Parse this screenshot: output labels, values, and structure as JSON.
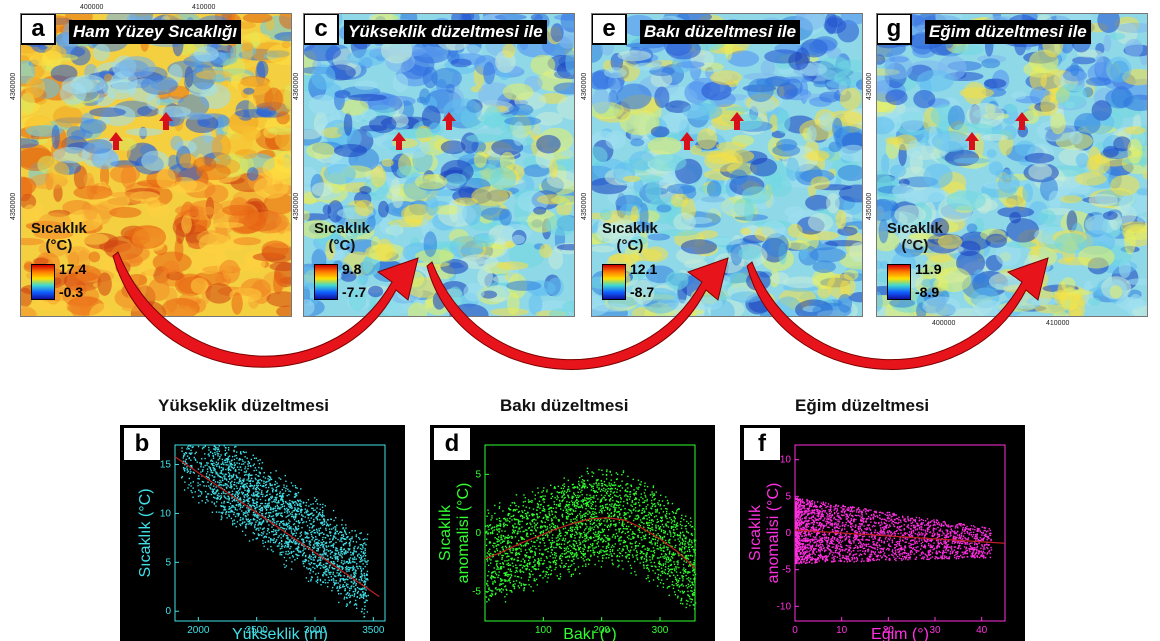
{
  "maps": [
    {
      "letter": "a",
      "title": "Ham Yüzey Sıcaklığı",
      "legend_title_line1": "Sıcaklık",
      "legend_title_line2": "(°C)",
      "max": "17.4",
      "min": "-0.3",
      "palette": "warm"
    },
    {
      "letter": "c",
      "title": "Yükseklik düzeltmesi ile",
      "legend_title_line1": "Sıcaklık",
      "legend_title_line2": "(°C)",
      "max": "9.8",
      "min": "-7.7",
      "palette": "cool"
    },
    {
      "letter": "e",
      "title": "Bakı düzeltmesi ile",
      "legend_title_line1": "Sıcaklık",
      "legend_title_line2": "(°C)",
      "max": "12.1",
      "min": "-8.7",
      "palette": "cool"
    },
    {
      "letter": "g",
      "title": "Eğim düzeltmesi ile",
      "legend_title_line1": "Sıcaklık",
      "legend_title_line2": "(°C)",
      "max": "11.9",
      "min": "-8.9",
      "palette": "cool"
    }
  ],
  "map_ticks": {
    "top_x": [
      "400000",
      "410000"
    ],
    "bottom_x": [
      "400000",
      "410000"
    ],
    "left_y": [
      "4360000",
      "4350000"
    ]
  },
  "colors": {
    "arrow": "#e8141c",
    "marker": "#d8101a",
    "cyan": "#40e0e8",
    "green": "#30ff30",
    "magenta": "#ff30e0",
    "fit": "#c02020"
  },
  "chart_data": [
    {
      "type": "scatter",
      "letter": "b",
      "title": "Yükseklik düzeltmesi",
      "xlabel": "Yükseklik (m)",
      "ylabel": "Sıcaklık (°C)",
      "xlim": [
        1800,
        3600
      ],
      "ylim": [
        -1,
        17
      ],
      "xticks": [
        2000,
        2500,
        3000,
        3500
      ],
      "yticks": [
        0,
        5,
        10,
        15
      ],
      "color": "#40e0e8",
      "fit": {
        "x": [
          1800,
          3550
        ],
        "y": [
          15.8,
          1.5
        ]
      }
    },
    {
      "type": "scatter",
      "letter": "d",
      "title": "Bakı düzeltmesi",
      "xlabel": "Bakı (°)",
      "ylabel_line1": "Sıcaklık",
      "ylabel_line2": "anomalisi (°C)",
      "xlim": [
        0,
        360
      ],
      "ylim": [
        -7.5,
        7.5
      ],
      "xticks": [
        100,
        200,
        300
      ],
      "yticks": [
        -5,
        0,
        5
      ],
      "color": "#30ff30",
      "fit": {
        "x": [
          0,
          30,
          60,
          90,
          120,
          150,
          180,
          210,
          240,
          270,
          300,
          330,
          360
        ],
        "y": [
          -2.2,
          -1.6,
          -0.9,
          -0.3,
          0.3,
          0.8,
          1.2,
          1.3,
          1.1,
          0.4,
          -0.5,
          -1.6,
          -3.0
        ]
      }
    },
    {
      "type": "scatter",
      "letter": "f",
      "title": "Eğim düzeltmesi",
      "xlabel": "Eğim (°)",
      "ylabel_line1": "Sıcaklık",
      "ylabel_line2": "anomalisi (°C)",
      "xlim": [
        0,
        45
      ],
      "ylim": [
        -12,
        12
      ],
      "xticks": [
        0,
        10,
        20,
        30,
        40
      ],
      "yticks": [
        -10,
        -5,
        0,
        5,
        10
      ],
      "color": "#ff30e0",
      "fit": {
        "x": [
          0,
          45
        ],
        "y": [
          0.4,
          -1.4
        ]
      }
    }
  ]
}
